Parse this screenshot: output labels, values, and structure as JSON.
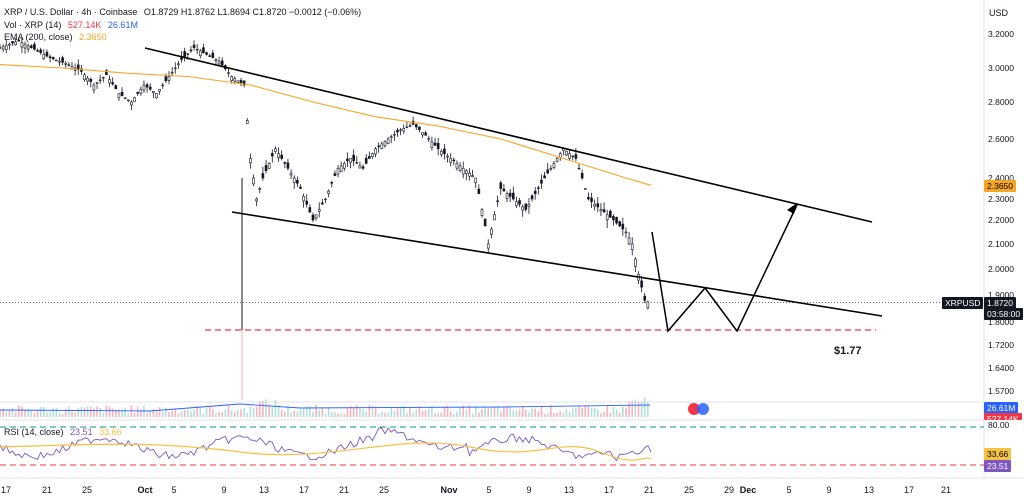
{
  "header": {
    "symbol_line": "XRP / U.S. Dollar · 4h · Coinbase",
    "ohlc": "O1.8729 H1.8762 L1.8694 C1.8720 −0.0012 (−0.06%)",
    "vol_label": "Vol · XRP (14)",
    "vol_value_1": "527.14K",
    "vol_value_2": "26.61M",
    "ema_label": "EMA (200, close)",
    "ema_value": "2.3650",
    "rsi_label": "RSI (14, close)",
    "rsi_value": "23.51",
    "rsi_value_2": "33.66"
  },
  "axis": {
    "currency": "USD",
    "price_ticks": [
      "3.2000",
      "3.0000",
      "2.8000",
      "2.6000",
      "2.4000",
      "2.3000",
      "2.2000",
      "2.1000",
      "2.0000",
      "1.9000",
      "1.8000",
      "1.7200",
      "1.6400",
      "1.5700"
    ],
    "time_ticks": [
      "17",
      "21",
      "25",
      "Oct",
      "5",
      "9",
      "13",
      "17",
      "21",
      "25",
      "Nov",
      "5",
      "9",
      "13",
      "17",
      "21",
      "25",
      "29",
      "Dec",
      "5",
      "9",
      "13",
      "17",
      "21"
    ],
    "rsi_ticks": [
      "80.00"
    ]
  },
  "tags": {
    "ema_tag": "2.3650",
    "symbol_tag": "XRPUSD",
    "last_price": "1.8720",
    "countdown": "03:58:00",
    "vol_tag": "26.61M",
    "vol_tag_2": "527.14K",
    "rsi_tag_1": "33.66",
    "rsi_tag_2": "23.51"
  },
  "annotation": {
    "target_label": "$1.77"
  },
  "colors": {
    "up": "#089981",
    "down": "#f23645",
    "candle": "#131722",
    "ema": "#f5a623",
    "rsi": "#7e57c2",
    "rsi_ma": "#f5c242",
    "dashed_red": "#f23645",
    "dashed_green": "#089981",
    "vol_blue": "#2962ff"
  },
  "chart_data": {
    "type": "candlestick",
    "title": "XRP / U.S. Dollar · 4h · Coinbase",
    "ylabel": "USD",
    "ylim": [
      1.53,
      3.24
    ],
    "x_range": [
      "Sep 17",
      "Dec 21"
    ],
    "price_path": [
      [
        0,
        3.12
      ],
      [
        3,
        3.16
      ],
      [
        6,
        3.1
      ],
      [
        8,
        3.06
      ],
      [
        11,
        3.02
      ],
      [
        13,
        2.98
      ],
      [
        15,
        2.9
      ],
      [
        17,
        2.96
      ],
      [
        19,
        2.85
      ],
      [
        21,
        2.8
      ],
      [
        23,
        2.9
      ],
      [
        25,
        2.85
      ],
      [
        27,
        2.95
      ],
      [
        29,
        3.05
      ],
      [
        31,
        3.12
      ],
      [
        33,
        3.08
      ],
      [
        35,
        3.04
      ],
      [
        37,
        2.95
      ],
      [
        39,
        2.9
      ],
      [
        40,
        2.5
      ],
      [
        41,
        2.3
      ],
      [
        42,
        2.4
      ],
      [
        44,
        2.55
      ],
      [
        46,
        2.45
      ],
      [
        48,
        2.35
      ],
      [
        50,
        2.2
      ],
      [
        52,
        2.3
      ],
      [
        54,
        2.45
      ],
      [
        56,
        2.5
      ],
      [
        58,
        2.45
      ],
      [
        60,
        2.55
      ],
      [
        62,
        2.6
      ],
      [
        64,
        2.65
      ],
      [
        66,
        2.68
      ],
      [
        68,
        2.62
      ],
      [
        70,
        2.55
      ],
      [
        72,
        2.5
      ],
      [
        74,
        2.45
      ],
      [
        76,
        2.4
      ],
      [
        78,
        2.1
      ],
      [
        80,
        2.35
      ],
      [
        82,
        2.3
      ],
      [
        84,
        2.25
      ],
      [
        86,
        2.35
      ],
      [
        88,
        2.45
      ],
      [
        90,
        2.55
      ],
      [
        92,
        2.5
      ],
      [
        94,
        2.3
      ],
      [
        96,
        2.25
      ],
      [
        98,
        2.2
      ],
      [
        100,
        2.15
      ],
      [
        101,
        2.1
      ],
      [
        102,
        1.98
      ],
      [
        103,
        1.88
      ],
      [
        104,
        1.87
      ]
    ],
    "ema200": [
      [
        0,
        3.02
      ],
      [
        10,
        3.0
      ],
      [
        20,
        2.97
      ],
      [
        30,
        2.95
      ],
      [
        40,
        2.9
      ],
      [
        50,
        2.8
      ],
      [
        60,
        2.72
      ],
      [
        70,
        2.67
      ],
      [
        80,
        2.6
      ],
      [
        90,
        2.5
      ],
      [
        100,
        2.4
      ],
      [
        104,
        2.365
      ]
    ],
    "last_price": 1.872,
    "horizontal_level": 1.77,
    "trendlines": [
      {
        "name": "upper channel",
        "from": [
          "Sep 29",
          3.16
        ],
        "to": [
          "Dec 14",
          2.2
        ]
      },
      {
        "name": "lower channel",
        "from": [
          "Oct 10",
          2.24
        ],
        "to": [
          "Dec 14",
          1.8
        ]
      }
    ],
    "projection": [
      [
        "Nov 22",
        2.16
      ],
      [
        "Nov 24",
        1.77
      ],
      [
        "Nov 29",
        1.92
      ],
      [
        "Dec 2",
        1.77
      ],
      [
        "Dec 9",
        2.29
      ]
    ],
    "rsi": {
      "value": 23.51,
      "ma": 33.66,
      "upper_band": 80,
      "lower_band": 20
    },
    "volume": {
      "value": "527.14K",
      "ma": "26.61M"
    }
  }
}
